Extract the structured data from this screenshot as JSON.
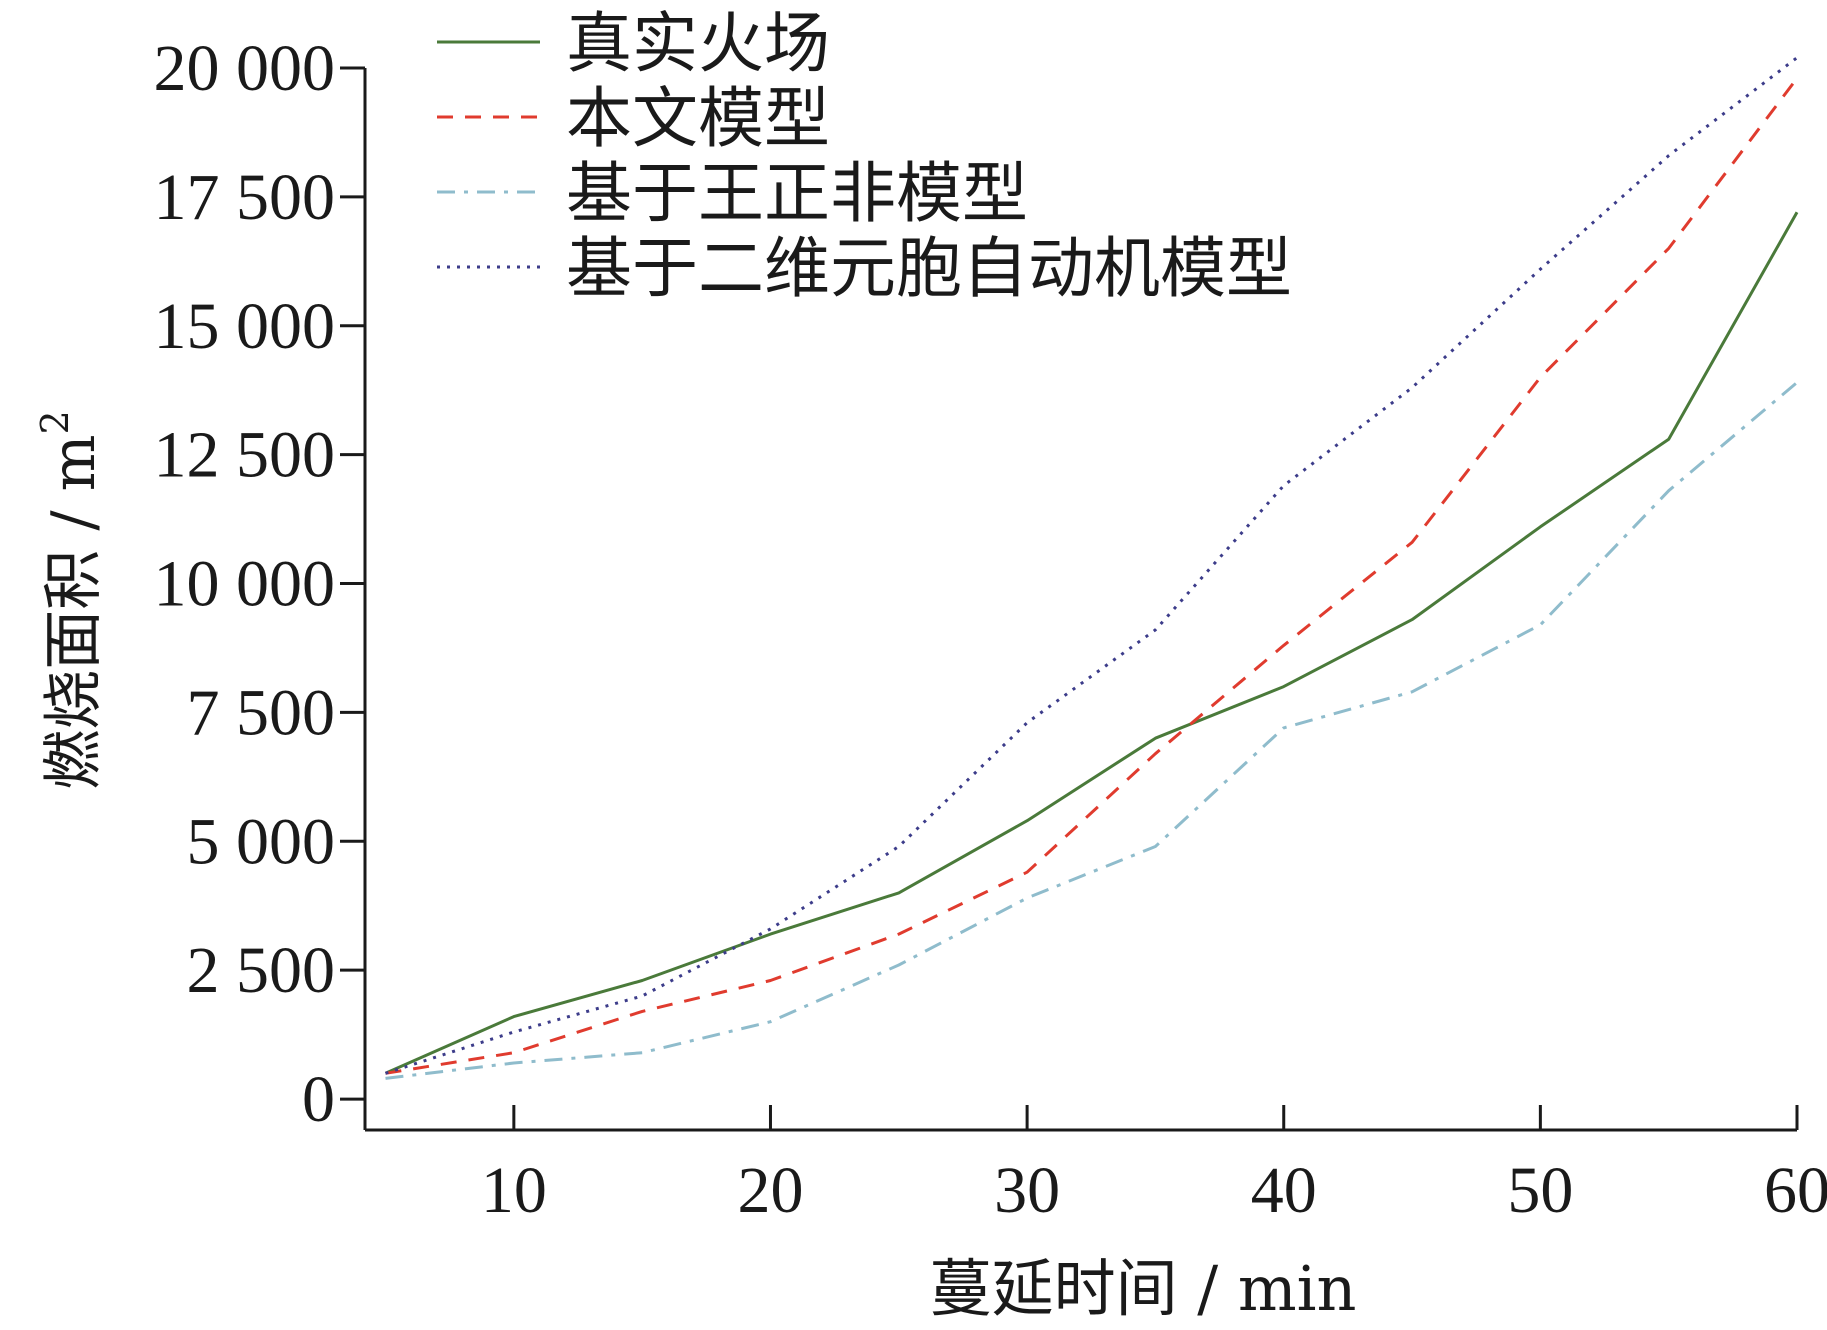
{
  "chart_data": {
    "type": "line",
    "title": "",
    "xlabel": "蔓延时间 / min",
    "ylabel": "燃烧面积 / m",
    "ylabel_superscript": "2",
    "xlim": [
      4.2,
      60
    ],
    "ylim": [
      -600,
      20000
    ],
    "x_ticks": [
      10,
      20,
      30,
      40,
      50,
      60
    ],
    "x_tick_labels": [
      "10",
      "20",
      "30",
      "40",
      "50",
      "60"
    ],
    "y_ticks": [
      0,
      2500,
      5000,
      7500,
      10000,
      12500,
      15000,
      17500,
      20000
    ],
    "y_tick_labels": [
      "0",
      "2 500",
      "5 000",
      "7 500",
      "10 000",
      "12 500",
      "15 000",
      "17 500",
      "20 000"
    ],
    "grid": false,
    "legend_position": "top-left",
    "x": [
      5,
      10,
      15,
      20,
      25,
      30,
      35,
      40,
      45,
      50,
      55,
      60
    ],
    "series": [
      {
        "name": "真实火场",
        "color": "#4a7a3a",
        "dash": "solid",
        "values": [
          500,
          1600,
          2300,
          3200,
          4000,
          5400,
          7000,
          8000,
          9300,
          11100,
          12800,
          17200
        ]
      },
      {
        "name": "本文模型",
        "color": "#e03b2e",
        "dash": "dashed",
        "values": [
          500,
          900,
          1700,
          2300,
          3200,
          4400,
          6700,
          8800,
          10800,
          14000,
          16500,
          19800
        ]
      },
      {
        "name": "基于王正非模型",
        "color": "#8fbccc",
        "dash": "dashdot",
        "values": [
          400,
          700,
          900,
          1500,
          2600,
          3900,
          4900,
          7200,
          7900,
          9200,
          11800,
          13900
        ]
      },
      {
        "name": "基于二维元胞自动机模型",
        "color": "#3c3c8a",
        "dash": "dotted",
        "values": [
          500,
          1300,
          2000,
          3300,
          4900,
          7300,
          9100,
          11900,
          13800,
          16100,
          18300,
          20200
        ]
      }
    ]
  }
}
